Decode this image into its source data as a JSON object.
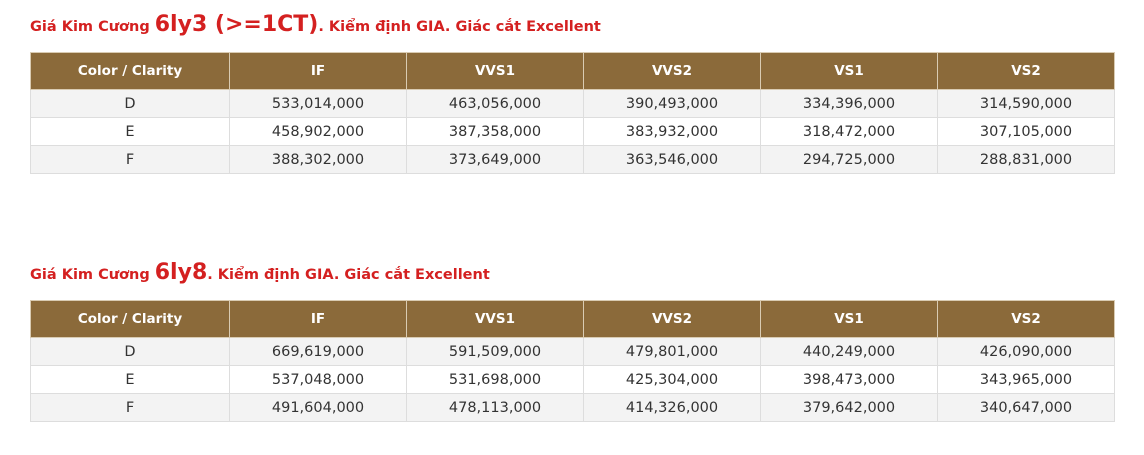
{
  "section1": {
    "title_prefix": "Giá Kim Cương ",
    "title_size": "6ly3 (>=1CT)",
    "title_suffix": ". Kiểm định GIA. Giác cắt Excellent",
    "headers": [
      "Color / Clarity",
      "IF",
      "VVS1",
      "VVS2",
      "VS1",
      "VS2"
    ],
    "rows": [
      [
        "D",
        "533,014,000",
        "463,056,000",
        "390,493,000",
        "334,396,000",
        "314,590,000"
      ],
      [
        "E",
        "458,902,000",
        "387,358,000",
        "383,932,000",
        "318,472,000",
        "307,105,000"
      ],
      [
        "F",
        "388,302,000",
        "373,649,000",
        "363,546,000",
        "294,725,000",
        "288,831,000"
      ]
    ]
  },
  "section2": {
    "title_prefix": "Giá Kim Cương ",
    "title_size": "6ly8",
    "title_suffix": ". Kiểm định GIA. Giác cắt Excellent",
    "headers": [
      "Color / Clarity",
      "IF",
      "VVS1",
      "VVS2",
      "VS1",
      "VS2"
    ],
    "rows": [
      [
        "D",
        "669,619,000",
        "591,509,000",
        "479,801,000",
        "440,249,000",
        "426,090,000"
      ],
      [
        "E",
        "537,048,000",
        "531,698,000",
        "425,304,000",
        "398,473,000",
        "343,965,000"
      ],
      [
        "F",
        "491,604,000",
        "478,113,000",
        "414,326,000",
        "379,642,000",
        "340,647,000"
      ]
    ]
  }
}
